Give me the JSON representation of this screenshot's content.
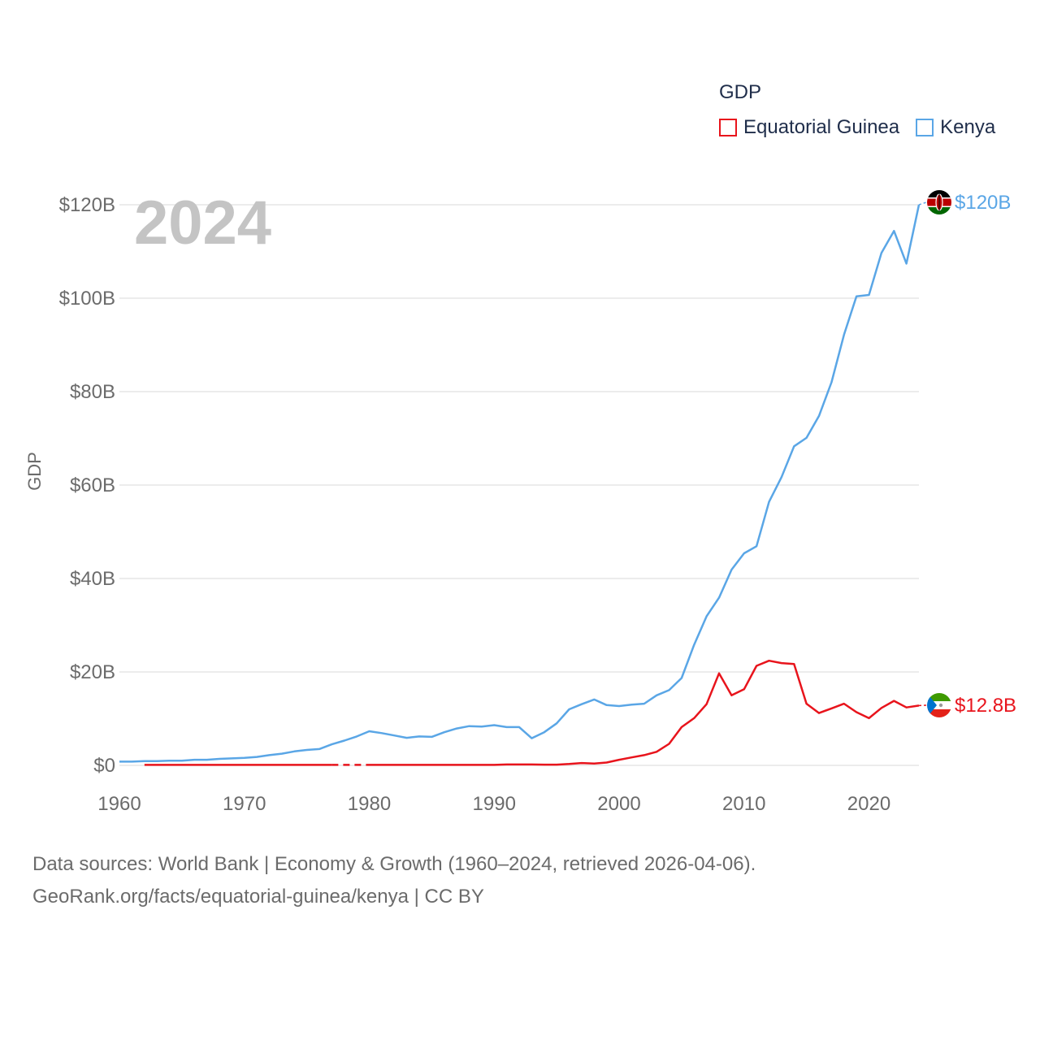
{
  "chart_data": {
    "type": "line",
    "year_label": "2024",
    "ylabel": "GDP",
    "xlabel": "",
    "ylim": [
      0,
      125
    ],
    "xlim": [
      1960,
      2024
    ],
    "x_ticks": [
      1960,
      1970,
      1980,
      1990,
      2000,
      2010,
      2020
    ],
    "x_tick_labels": [
      "1960",
      "1970",
      "1980",
      "1990",
      "2000",
      "2010",
      "2020"
    ],
    "y_ticks": [
      0,
      20,
      40,
      60,
      80,
      100,
      120
    ],
    "y_tick_labels": [
      "$0",
      "$20B",
      "$40B",
      "$60B",
      "$80B",
      "$100B",
      "$120B"
    ],
    "legend": {
      "title": "GDP",
      "position": "top-right"
    },
    "units": "billions USD",
    "series": [
      {
        "name": "Equatorial Guinea",
        "color": "#e8141c",
        "end_label": "$12.8B",
        "flag": "equatorial-guinea-flag",
        "gap": [
          1977,
          1980
        ],
        "x": [
          1962,
          1963,
          1964,
          1965,
          1966,
          1967,
          1968,
          1969,
          1970,
          1971,
          1972,
          1973,
          1974,
          1975,
          1976,
          1977,
          1978,
          1979,
          1980,
          1981,
          1982,
          1983,
          1984,
          1985,
          1986,
          1987,
          1988,
          1989,
          1990,
          1991,
          1992,
          1993,
          1994,
          1995,
          1996,
          1997,
          1998,
          1999,
          2000,
          2001,
          2002,
          2003,
          2004,
          2005,
          2006,
          2007,
          2008,
          2009,
          2010,
          2011,
          2012,
          2013,
          2014,
          2015,
          2016,
          2017,
          2018,
          2019,
          2020,
          2021,
          2022,
          2023,
          2024
        ],
        "values": [
          0.1,
          0.1,
          0.1,
          0.1,
          0.1,
          0.1,
          0.1,
          0.1,
          0.1,
          0.1,
          0.1,
          0.1,
          0.1,
          0.1,
          0.1,
          0.1,
          0.1,
          0.1,
          0.1,
          0.1,
          0.1,
          0.1,
          0.1,
          0.1,
          0.1,
          0.1,
          0.1,
          0.1,
          0.1,
          0.2,
          0.2,
          0.2,
          0.15,
          0.15,
          0.3,
          0.5,
          0.4,
          0.6,
          1.2,
          1.7,
          2.2,
          2.9,
          4.6,
          8.2,
          10.1,
          13.1,
          19.7,
          15.0,
          16.3,
          21.3,
          22.4,
          21.9,
          21.7,
          13.2,
          11.2,
          12.2,
          13.2,
          11.4,
          10.1,
          12.3,
          13.8,
          12.4,
          12.8
        ]
      },
      {
        "name": "Kenya",
        "color": "#5aa6e6",
        "end_label": "$120B",
        "flag": "kenya-flag",
        "x": [
          1960,
          1961,
          1962,
          1963,
          1964,
          1965,
          1966,
          1967,
          1968,
          1969,
          1970,
          1971,
          1972,
          1973,
          1974,
          1975,
          1976,
          1977,
          1978,
          1979,
          1980,
          1981,
          1982,
          1983,
          1984,
          1985,
          1986,
          1987,
          1988,
          1989,
          1990,
          1991,
          1992,
          1993,
          1994,
          1995,
          1996,
          1997,
          1998,
          1999,
          2000,
          2001,
          2002,
          2003,
          2004,
          2005,
          2006,
          2007,
          2008,
          2009,
          2010,
          2011,
          2012,
          2013,
          2014,
          2015,
          2016,
          2017,
          2018,
          2019,
          2020,
          2021,
          2022,
          2023,
          2024
        ],
        "values": [
          0.8,
          0.8,
          0.9,
          0.9,
          1.0,
          1.0,
          1.2,
          1.2,
          1.4,
          1.5,
          1.6,
          1.8,
          2.2,
          2.5,
          3.0,
          3.3,
          3.5,
          4.5,
          5.3,
          6.2,
          7.3,
          6.9,
          6.4,
          5.9,
          6.2,
          6.1,
          7.1,
          7.9,
          8.4,
          8.3,
          8.6,
          8.2,
          8.2,
          5.8,
          7.1,
          9.0,
          12.0,
          13.1,
          14.1,
          12.9,
          12.7,
          13.0,
          13.2,
          15.0,
          16.1,
          18.7,
          25.8,
          31.9,
          35.9,
          41.9,
          45.4,
          46.9,
          56.4,
          61.7,
          68.3,
          70.1,
          74.8,
          82.0,
          92.2,
          100.4,
          100.7,
          109.7,
          114.4,
          107.4,
          120.0
        ]
      }
    ]
  },
  "footer": {
    "line1": "Data sources: World Bank | Economy & Growth (1960–2024, retrieved 2026-04-06).",
    "line2": "GeoRank.org/facts/equatorial-guinea/kenya | CC BY"
  }
}
